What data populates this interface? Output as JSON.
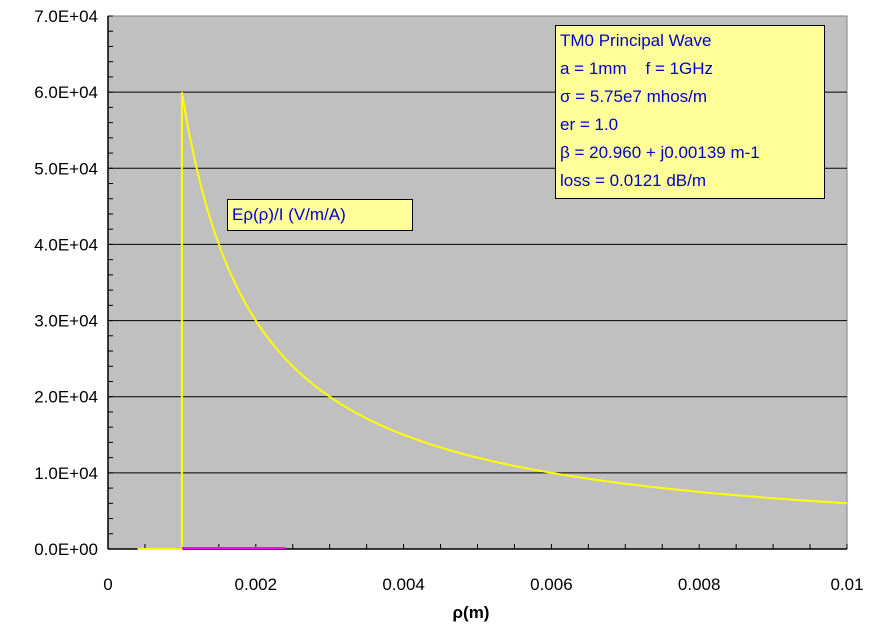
{
  "chart_data": {
    "type": "line",
    "title": "",
    "xlabel": "ρ(m)",
    "ylabel": "",
    "xlim": [
      0,
      0.01
    ],
    "ylim": [
      0,
      70000
    ],
    "x_ticks": [
      "0",
      "0.002",
      "0.004",
      "0.006",
      "0.008",
      "0.01"
    ],
    "x_tick_values": [
      0,
      0.002,
      0.004,
      0.006,
      0.008,
      0.01
    ],
    "y_ticks": [
      "0.0E+00",
      "1.0E+04",
      "2.0E+04",
      "3.0E+04",
      "4.0E+04",
      "5.0E+04",
      "6.0E+04",
      "7.0E+04"
    ],
    "y_tick_values": [
      0,
      10000,
      20000,
      30000,
      40000,
      50000,
      60000,
      70000
    ],
    "grid": "horizontal major",
    "background_color": "#c0c0c0",
    "series": [
      {
        "name": "Eρ(ρ)/I  (V/m/A)",
        "color": "#ffff00",
        "x": [
          0.0004,
          0.001,
          0.001,
          0.0012,
          0.0015,
          0.002,
          0.0025,
          0.003,
          0.004,
          0.005,
          0.006,
          0.007,
          0.008,
          0.009,
          0.01
        ],
        "y": [
          0,
          0,
          60000,
          50000,
          40000,
          30000,
          24000,
          20000,
          15000,
          12000,
          10000,
          8571,
          7500,
          6667,
          6000
        ]
      },
      {
        "color": "#ff00ff",
        "x": [
          0.001,
          0.0024
        ],
        "y": [
          0,
          0
        ]
      }
    ],
    "annotations": {
      "series_label": "Eρ(ρ)/I  (V/m/A)",
      "info_lines": [
        "TM0  Principal Wave",
        "a = 1mm    f = 1GHz",
        "σ = 5.75e7 mhos/m",
        "er = 1.0",
        "β = 20.960 + j0.00139 m-1",
        "loss = 0.0121 dB/m"
      ]
    }
  }
}
